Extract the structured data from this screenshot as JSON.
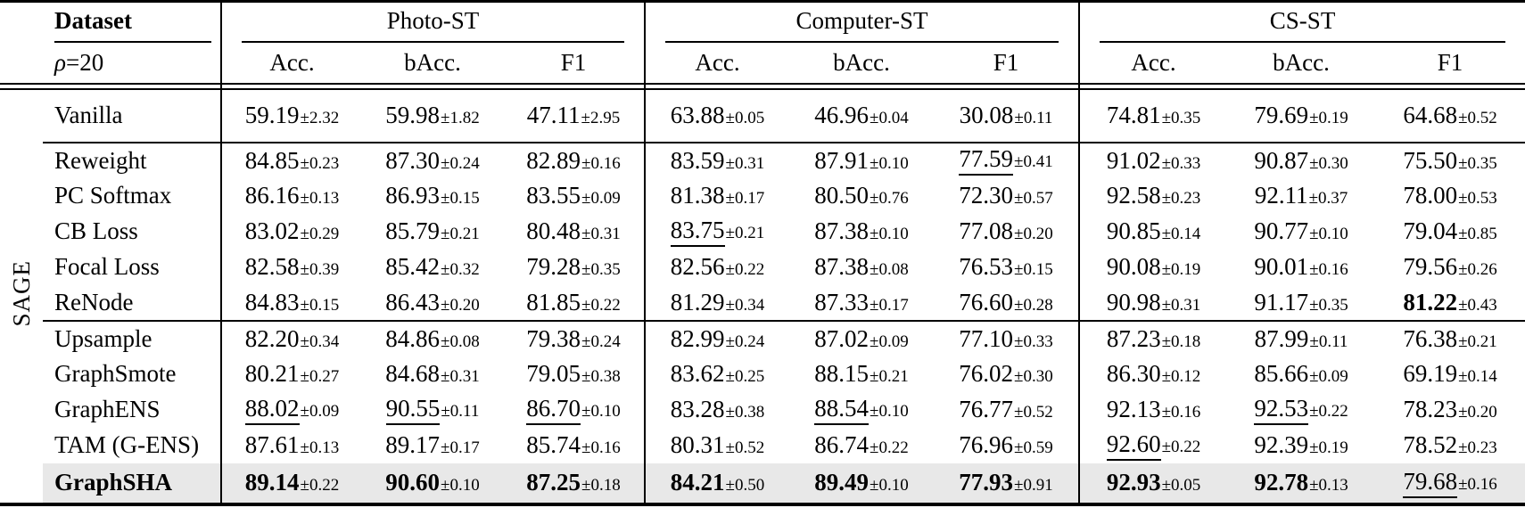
{
  "table": {
    "group_label": "SAGE",
    "highlight_color": "#e8e8e8",
    "header": {
      "dataset_label": "Dataset",
      "rho_symbol": "ρ",
      "rho_rest": "=20",
      "groups": [
        {
          "label": "Photo-ST"
        },
        {
          "label": "Computer-ST"
        },
        {
          "label": "CS-ST"
        }
      ],
      "metrics": [
        "Acc.",
        "bAcc.",
        "F1",
        "Acc.",
        "bAcc.",
        "F1",
        "Acc.",
        "bAcc.",
        "F1"
      ]
    },
    "rows": [
      {
        "method": "Vanilla",
        "cells": [
          {
            "v": "59.19",
            "e": "±2.32"
          },
          {
            "v": "59.98",
            "e": "±1.82"
          },
          {
            "v": "47.11",
            "e": "±2.95"
          },
          {
            "v": "63.88",
            "e": "±0.05"
          },
          {
            "v": "46.96",
            "e": "±0.04"
          },
          {
            "v": "30.08",
            "e": "±0.11"
          },
          {
            "v": "74.81",
            "e": "±0.35"
          },
          {
            "v": "79.69",
            "e": "±0.19"
          },
          {
            "v": "64.68",
            "e": "±0.52"
          }
        ]
      },
      {
        "method": "Reweight",
        "rule_above": true,
        "cells": [
          {
            "v": "84.85",
            "e": "±0.23"
          },
          {
            "v": "87.30",
            "e": "±0.24"
          },
          {
            "v": "82.89",
            "e": "±0.16"
          },
          {
            "v": "83.59",
            "e": "±0.31"
          },
          {
            "v": "87.91",
            "e": "±0.10"
          },
          {
            "v": "77.59",
            "e": "±0.41",
            "u": true
          },
          {
            "v": "91.02",
            "e": "±0.33"
          },
          {
            "v": "90.87",
            "e": "±0.30"
          },
          {
            "v": "75.50",
            "e": "±0.35"
          }
        ]
      },
      {
        "method": "PC Softmax",
        "cells": [
          {
            "v": "86.16",
            "e": "±0.13"
          },
          {
            "v": "86.93",
            "e": "±0.15"
          },
          {
            "v": "83.55",
            "e": "±0.09"
          },
          {
            "v": "81.38",
            "e": "±0.17"
          },
          {
            "v": "80.50",
            "e": "±0.76"
          },
          {
            "v": "72.30",
            "e": "±0.57"
          },
          {
            "v": "92.58",
            "e": "±0.23"
          },
          {
            "v": "92.11",
            "e": "±0.37"
          },
          {
            "v": "78.00",
            "e": "±0.53"
          }
        ]
      },
      {
        "method": "CB Loss",
        "cells": [
          {
            "v": "83.02",
            "e": "±0.29"
          },
          {
            "v": "85.79",
            "e": "±0.21"
          },
          {
            "v": "80.48",
            "e": "±0.31"
          },
          {
            "v": "83.75",
            "e": "±0.21",
            "u": true
          },
          {
            "v": "87.38",
            "e": "±0.10"
          },
          {
            "v": "77.08",
            "e": "±0.20"
          },
          {
            "v": "90.85",
            "e": "±0.14"
          },
          {
            "v": "90.77",
            "e": "±0.10"
          },
          {
            "v": "79.04",
            "e": "±0.85"
          }
        ]
      },
      {
        "method": "Focal Loss",
        "cells": [
          {
            "v": "82.58",
            "e": "±0.39"
          },
          {
            "v": "85.42",
            "e": "±0.32"
          },
          {
            "v": "79.28",
            "e": "±0.35"
          },
          {
            "v": "82.56",
            "e": "±0.22"
          },
          {
            "v": "87.38",
            "e": "±0.08"
          },
          {
            "v": "76.53",
            "e": "±0.15"
          },
          {
            "v": "90.08",
            "e": "±0.19"
          },
          {
            "v": "90.01",
            "e": "±0.16"
          },
          {
            "v": "79.56",
            "e": "±0.26"
          }
        ]
      },
      {
        "method": "ReNode",
        "cells": [
          {
            "v": "84.83",
            "e": "±0.15"
          },
          {
            "v": "86.43",
            "e": "±0.20"
          },
          {
            "v": "81.85",
            "e": "±0.22"
          },
          {
            "v": "81.29",
            "e": "±0.34"
          },
          {
            "v": "87.33",
            "e": "±0.17"
          },
          {
            "v": "76.60",
            "e": "±0.28"
          },
          {
            "v": "90.98",
            "e": "±0.31"
          },
          {
            "v": "91.17",
            "e": "±0.35"
          },
          {
            "v": "81.22",
            "e": "±0.43",
            "b": true
          }
        ]
      },
      {
        "method": "Upsample",
        "rule_above": true,
        "cells": [
          {
            "v": "82.20",
            "e": "±0.34"
          },
          {
            "v": "84.86",
            "e": "±0.08"
          },
          {
            "v": "79.38",
            "e": "±0.24"
          },
          {
            "v": "82.99",
            "e": "±0.24"
          },
          {
            "v": "87.02",
            "e": "±0.09"
          },
          {
            "v": "77.10",
            "e": "±0.33"
          },
          {
            "v": "87.23",
            "e": "±0.18"
          },
          {
            "v": "87.99",
            "e": "±0.11"
          },
          {
            "v": "76.38",
            "e": "±0.21"
          }
        ]
      },
      {
        "method": "GraphSmote",
        "cells": [
          {
            "v": "80.21",
            "e": "±0.27"
          },
          {
            "v": "84.68",
            "e": "±0.31"
          },
          {
            "v": "79.05",
            "e": "±0.38"
          },
          {
            "v": "83.62",
            "e": "±0.25"
          },
          {
            "v": "88.15",
            "e": "±0.21"
          },
          {
            "v": "76.02",
            "e": "±0.30"
          },
          {
            "v": "86.30",
            "e": "±0.12"
          },
          {
            "v": "85.66",
            "e": "±0.09"
          },
          {
            "v": "69.19",
            "e": "±0.14"
          }
        ]
      },
      {
        "method": "GraphENS",
        "cells": [
          {
            "v": "88.02",
            "e": "±0.09",
            "u": true
          },
          {
            "v": "90.55",
            "e": "±0.11",
            "u": true
          },
          {
            "v": "86.70",
            "e": "±0.10",
            "u": true
          },
          {
            "v": "83.28",
            "e": "±0.38"
          },
          {
            "v": "88.54",
            "e": "±0.10",
            "u": true
          },
          {
            "v": "76.77",
            "e": "±0.52"
          },
          {
            "v": "92.13",
            "e": "±0.16"
          },
          {
            "v": "92.53",
            "e": "±0.22",
            "u": true
          },
          {
            "v": "78.23",
            "e": "±0.20"
          }
        ]
      },
      {
        "method": "TAM (G-ENS)",
        "cells": [
          {
            "v": "87.61",
            "e": "±0.13"
          },
          {
            "v": "89.17",
            "e": "±0.17"
          },
          {
            "v": "85.74",
            "e": "±0.16"
          },
          {
            "v": "80.31",
            "e": "±0.52"
          },
          {
            "v": "86.74",
            "e": "±0.22"
          },
          {
            "v": "76.96",
            "e": "±0.59"
          },
          {
            "v": "92.60",
            "e": "±0.22",
            "u": true
          },
          {
            "v": "92.39",
            "e": "±0.19"
          },
          {
            "v": "78.52",
            "e": "±0.23"
          }
        ]
      },
      {
        "method": "GraphSHA",
        "bold_method": true,
        "highlight": true,
        "cells": [
          {
            "v": "89.14",
            "e": "±0.22",
            "b": true
          },
          {
            "v": "90.60",
            "e": "±0.10",
            "b": true
          },
          {
            "v": "87.25",
            "e": "±0.18",
            "b": true
          },
          {
            "v": "84.21",
            "e": "±0.50",
            "b": true
          },
          {
            "v": "89.49",
            "e": "±0.10",
            "b": true
          },
          {
            "v": "77.93",
            "e": "±0.91",
            "b": true
          },
          {
            "v": "92.93",
            "e": "±0.05",
            "b": true
          },
          {
            "v": "92.78",
            "e": "±0.13",
            "b": true
          },
          {
            "v": "79.68",
            "e": "±0.16",
            "u": true
          }
        ]
      }
    ]
  }
}
